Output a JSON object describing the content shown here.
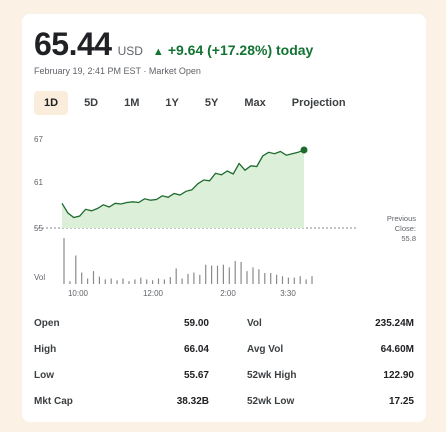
{
  "header": {
    "price": "65.44",
    "currency": "USD",
    "change": "+9.64 (+17.28%) today",
    "timestamp": "February 19, 2:41 PM EST · Market Open"
  },
  "tabs": [
    {
      "label": "1D",
      "active": true
    },
    {
      "label": "5D"
    },
    {
      "label": "1M"
    },
    {
      "label": "1Y"
    },
    {
      "label": "5Y"
    },
    {
      "label": "Max"
    },
    {
      "label": "Projection"
    }
  ],
  "colors": {
    "up": "#137333",
    "line": "#1e6b2e",
    "area": "#dcefd9",
    "active_tab": "#faeddb",
    "background": "#fbf1e4"
  },
  "chart_data": {
    "type": "line",
    "y_ticks": [
      "67",
      "61",
      "55"
    ],
    "ylim": [
      55,
      67
    ],
    "prev_close_label": [
      "Previous",
      "Close:",
      "55.8"
    ],
    "prev_close": 55.8,
    "x_ticks": [
      "10:00",
      "12:00",
      "2:00",
      "3:30"
    ],
    "volume_label": "Vol",
    "price_series": [
      58.3,
      57.0,
      56.4,
      56.6,
      57.5,
      57.3,
      57.6,
      58.1,
      57.8,
      58.3,
      58.2,
      58.4,
      58.5,
      58.4,
      58.9,
      58.7,
      58.8,
      59.3,
      59.1,
      59.6,
      59.4,
      59.9,
      60.1,
      60.9,
      61.4,
      61.3,
      62.3,
      62.1,
      62.6,
      62.2,
      63.6,
      62.7,
      63.3,
      63.2,
      64.6,
      65.1,
      64.9,
      65.2,
      64.7,
      64.9,
      65.1,
      65.4
    ],
    "volume_series": [
      100,
      6,
      62,
      25,
      12,
      28,
      16,
      10,
      12,
      8,
      12,
      6,
      10,
      14,
      10,
      8,
      12,
      10,
      15,
      34,
      12,
      22,
      25,
      20,
      42,
      40,
      40,
      42,
      36,
      50,
      48,
      28,
      36,
      32,
      24,
      24,
      20,
      17,
      14,
      14,
      17,
      10,
      17
    ]
  },
  "stats": [
    {
      "label": "Open",
      "value": "59.00",
      "label2": "Vol",
      "value2": "235.24M"
    },
    {
      "label": "High",
      "value": "66.04",
      "label2": "Avg Vol",
      "value2": "64.60M"
    },
    {
      "label": "Low",
      "value": "55.67",
      "label2": "52wk High",
      "value2": "122.90"
    },
    {
      "label": "Mkt Cap",
      "value": "38.32B",
      "label2": "52wk Low",
      "value2": "17.25"
    }
  ]
}
